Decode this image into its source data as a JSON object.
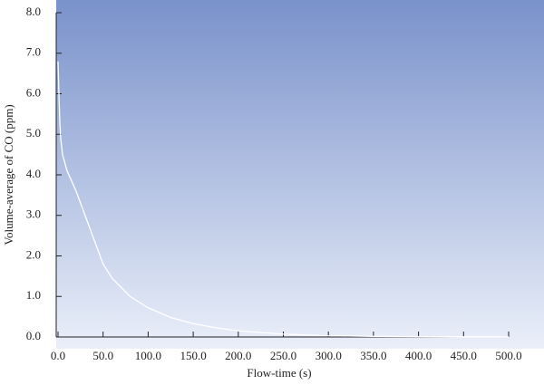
{
  "chart_data": {
    "type": "line",
    "xlabel": "Flow-time (s)",
    "ylabel": "Volume-average of CO (ppm)",
    "series": [
      {
        "color": "#ffffff",
        "x": [
          0,
          1,
          2,
          3,
          5,
          10,
          20,
          30,
          40,
          50,
          60,
          80,
          100,
          125,
          150,
          175,
          200,
          250,
          300,
          350,
          400,
          450,
          500
        ],
        "values": [
          6.8,
          6.0,
          5.3,
          4.9,
          4.5,
          4.1,
          3.6,
          3.0,
          2.4,
          1.8,
          1.45,
          1.0,
          0.72,
          0.48,
          0.33,
          0.23,
          0.15,
          0.07,
          0.03,
          0.015,
          0.008,
          0.004,
          0.002
        ]
      }
    ],
    "xlim": [
      0,
      500
    ],
    "xticks": [
      {
        "value": 0,
        "label": "0.0"
      },
      {
        "value": 50,
        "label": "50.0"
      },
      {
        "value": 100,
        "label": "100.0"
      },
      {
        "value": 150,
        "label": "150.0"
      },
      {
        "value": 200,
        "label": "200.0"
      },
      {
        "value": 250,
        "label": "250.0"
      },
      {
        "value": 300,
        "label": "300.0"
      },
      {
        "value": 350,
        "label": "350.0"
      },
      {
        "value": 400,
        "label": "400.0"
      },
      {
        "value": 450,
        "label": "450.0"
      },
      {
        "value": 500,
        "label": "500.0"
      }
    ],
    "ylim": [
      0,
      8
    ],
    "yticks": [
      {
        "value": 0,
        "label": "0.0"
      },
      {
        "value": 1,
        "label": "1.0"
      },
      {
        "value": 2,
        "label": "2.0"
      },
      {
        "value": 3,
        "label": "3.0"
      },
      {
        "value": 4,
        "label": "4.0"
      },
      {
        "value": 5,
        "label": "5.0"
      },
      {
        "value": 6,
        "label": "6.0"
      },
      {
        "value": 7,
        "label": "7.0"
      },
      {
        "value": 8,
        "label": "8.0"
      }
    ],
    "grid": false
  }
}
